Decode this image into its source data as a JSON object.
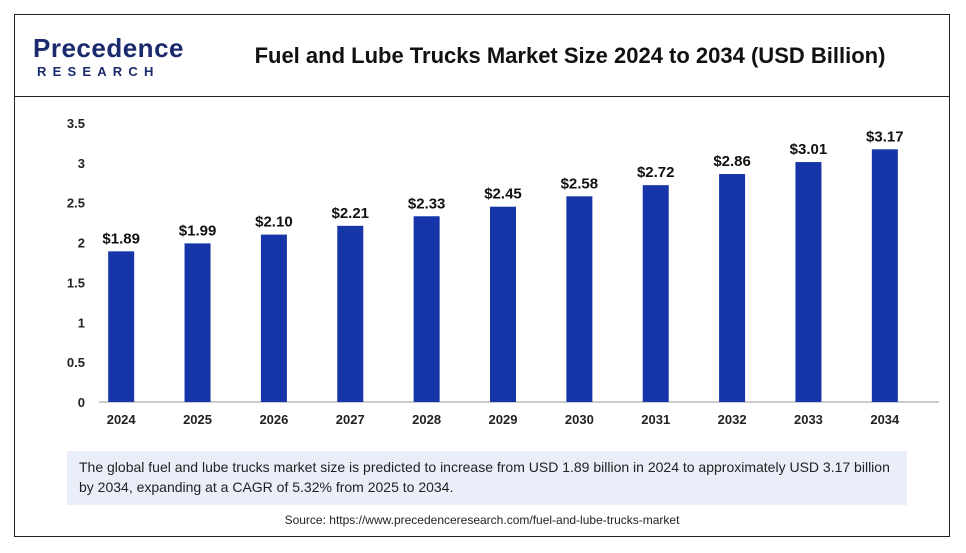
{
  "brand": {
    "top": "Precedence",
    "bottom": "RESEARCH",
    "color": "#1a2a6c"
  },
  "title": "Fuel and Lube Trucks Market Size 2024 to 2034 (USD Billion)",
  "note": "The global fuel and lube trucks market size is predicted to increase from USD 1.89 billion in 2024 to approximately USD 3.17 billion by 2034, expanding at a CAGR of 5.32% from 2025 to 2034.",
  "source": "Source: https://www.precedenceresearch.com/fuel-and-lube-trucks-market",
  "chart_data": {
    "type": "bar",
    "categories": [
      "2024",
      "2025",
      "2026",
      "2027",
      "2028",
      "2029",
      "2030",
      "2031",
      "2032",
      "2033",
      "2034"
    ],
    "values": [
      1.89,
      1.99,
      2.1,
      2.21,
      2.33,
      2.45,
      2.58,
      2.72,
      2.86,
      3.01,
      3.17
    ],
    "data_labels": [
      "$1.89",
      "$1.99",
      "$2.10",
      "$2.21",
      "$2.33",
      "$2.45",
      "$2.58",
      "$2.72",
      "$2.86",
      "$3.01",
      "$3.17"
    ],
    "yticks": [
      "0",
      "0.5",
      "1",
      "1.5",
      "2",
      "2.5",
      "3",
      "3.5"
    ],
    "ylim": [
      0,
      3.5
    ],
    "grid": false,
    "bar_color": "#1535a8"
  }
}
